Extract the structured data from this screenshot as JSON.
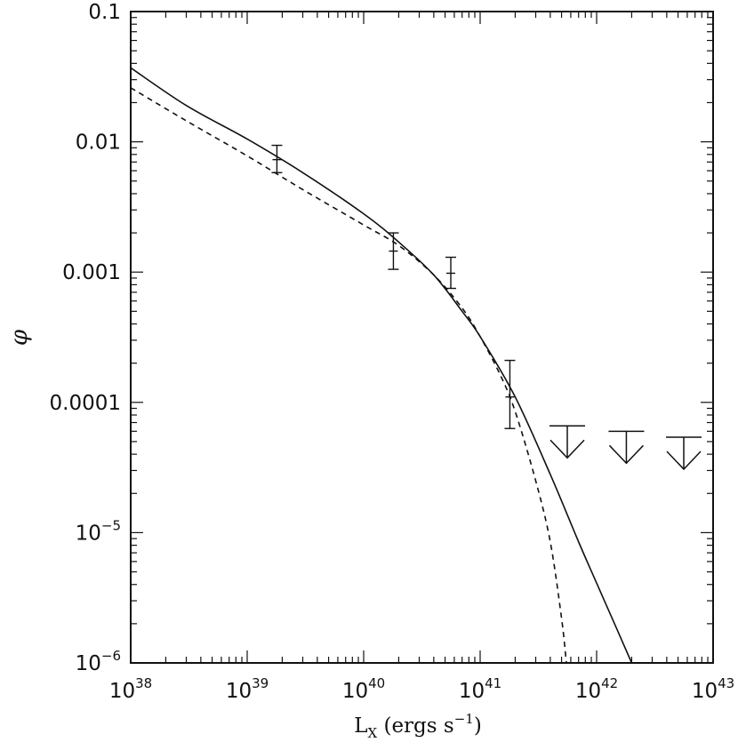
{
  "chart_data": {
    "type": "line",
    "title": "",
    "xlabel": {
      "base": "L",
      "sub": "X",
      "rest": " (ergs s",
      "exp": "−1",
      "close": ")"
    },
    "ylabel": "φ",
    "xscale": "log",
    "yscale": "log",
    "xlim": [
      1e+38,
      1e+43
    ],
    "ylim": [
      1e-06,
      0.1
    ],
    "x_ticks": [
      {
        "base": "10",
        "exp": "38"
      },
      {
        "base": "10",
        "exp": "39"
      },
      {
        "base": "10",
        "exp": "40"
      },
      {
        "base": "10",
        "exp": "41"
      },
      {
        "base": "10",
        "exp": "42"
      },
      {
        "base": "10",
        "exp": "43"
      }
    ],
    "y_ticks": [
      {
        "base": "10",
        "exp": "−6"
      },
      {
        "base": "10",
        "exp": "−5"
      },
      {
        "base": "0.0001",
        "exp": ""
      },
      {
        "base": "0.001",
        "exp": ""
      },
      {
        "base": "0.01",
        "exp": ""
      },
      {
        "base": "0.1",
        "exp": ""
      }
    ],
    "series": [
      {
        "style": "solid",
        "x": [
          1e+38,
          3e+38,
          1e+39,
          3e+39,
          1e+40,
          2e+40,
          4e+40,
          7e+40,
          1e+41,
          2e+41,
          4e+41,
          7e+41,
          1e+42,
          1.5e+42,
          2e+42
        ],
        "y": [
          0.037,
          0.019,
          0.0105,
          0.0058,
          0.0028,
          0.0017,
          0.00095,
          0.0005,
          0.00032,
          0.00011,
          2.8e-05,
          8.5e-06,
          4.1e-06,
          1.8e-06,
          1e-06
        ]
      },
      {
        "style": "dashed",
        "x": [
          1e+38,
          3e+38,
          1e+39,
          3e+39,
          1e+40,
          2e+40,
          4e+40,
          7e+40,
          1e+41,
          1.5e+41,
          2e+41,
          3e+41,
          4e+41,
          5e+41,
          5.5e+41
        ],
        "y": [
          0.026,
          0.0145,
          0.0078,
          0.0043,
          0.0023,
          0.0016,
          0.00095,
          0.00053,
          0.00032,
          0.00016,
          8.5e-05,
          2.5e-05,
          8.5e-06,
          2.2e-06,
          1e-06
        ]
      }
    ],
    "points": [
      {
        "x": 1.8e+39,
        "y": 0.0073,
        "y_low": 0.0058,
        "y_high": 0.0094
      },
      {
        "x": 1.8e+40,
        "y": 0.00145,
        "y_low": 0.00105,
        "y_high": 0.002
      },
      {
        "x": 5.6e+40,
        "y": 0.00098,
        "y_low": 0.00075,
        "y_high": 0.0013
      },
      {
        "x": 1.8e+41,
        "y": 0.00011,
        "y_low": 6.3e-05,
        "y_high": 0.00021
      }
    ],
    "upper_limits": [
      {
        "x": 5.6e+41,
        "y": 6.6e-05
      },
      {
        "x": 1.8e+42,
        "y": 6e-05
      },
      {
        "x": 5.6e+42,
        "y": 5.4e-05
      }
    ]
  }
}
